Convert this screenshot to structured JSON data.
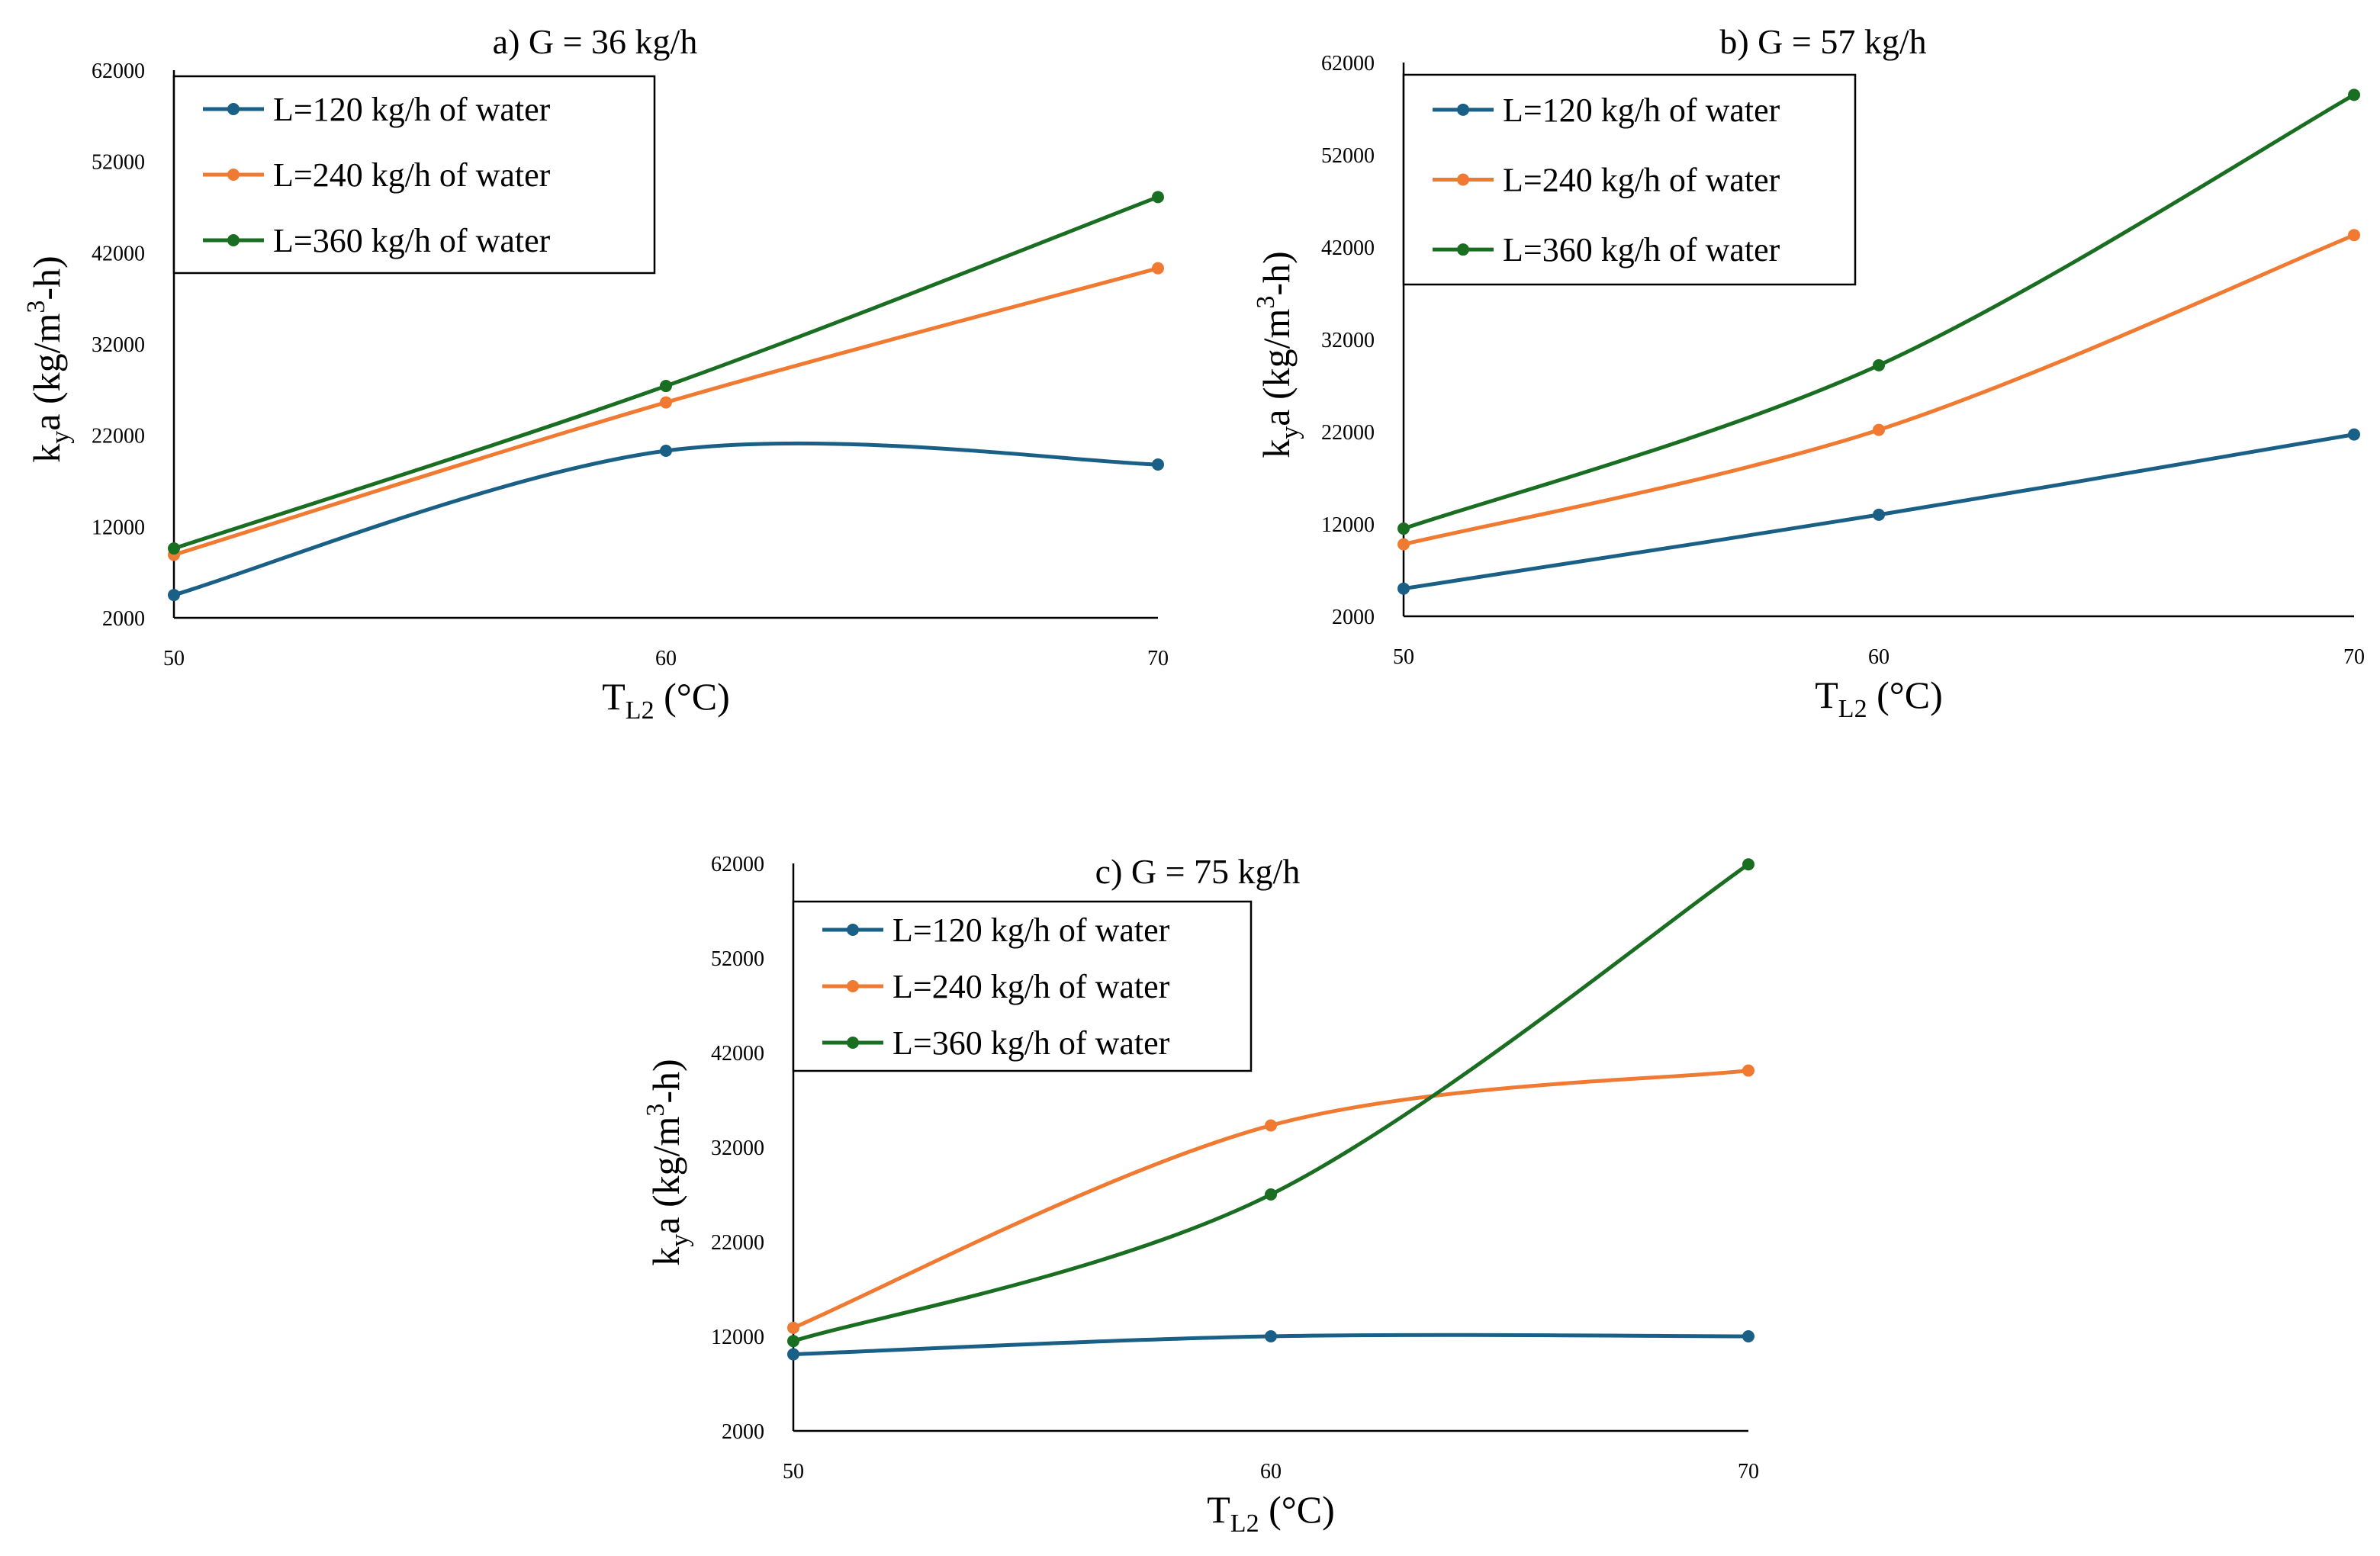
{
  "chart_data": [
    {
      "type": "line",
      "title": "a) G = 36 kg/h",
      "xlabel": "T",
      "xlabel_sub": "L2",
      "xlabel_unit": " (°C)",
      "ylabel": "k",
      "ylabel_sub": "y",
      "ylabel_mid": "a (kg/m",
      "ylabel_sup": "3",
      "ylabel_end": "-h)",
      "x": [
        50,
        60,
        70
      ],
      "xlim": [
        50,
        70
      ],
      "ylim": [
        2000,
        62000
      ],
      "yticks": [
        "2000",
        "12000",
        "22000",
        "32000",
        "42000",
        "52000",
        "62000"
      ],
      "xticks": [
        "50",
        "60",
        "70"
      ],
      "grid": false,
      "legend_position": "top-left",
      "series": [
        {
          "name": "L=120 kg/h of water",
          "color": "#1a5f86",
          "values": [
            4500,
            20300,
            18800
          ]
        },
        {
          "name": "L=240 kg/h of water",
          "color": "#f07a32",
          "values": [
            8900,
            25600,
            40300
          ]
        },
        {
          "name": "L=360 kg/h of water",
          "color": "#1a6e22",
          "values": [
            9600,
            27400,
            48100
          ]
        }
      ]
    },
    {
      "type": "line",
      "title": "b) G = 57 kg/h",
      "xlabel": "T",
      "xlabel_sub": "L2",
      "xlabel_unit": " (°C)",
      "ylabel": "k",
      "ylabel_sub": "y",
      "ylabel_mid": "a (kg/m",
      "ylabel_sup": "3",
      "ylabel_end": "-h)",
      "x": [
        50,
        60,
        70
      ],
      "xlim": [
        50,
        70
      ],
      "ylim": [
        2000,
        62000
      ],
      "yticks": [
        "2000",
        "12000",
        "22000",
        "32000",
        "42000",
        "52000",
        "62000"
      ],
      "xticks": [
        "50",
        "60",
        "70"
      ],
      "grid": false,
      "legend_position": "top-left",
      "series": [
        {
          "name": "L=120 kg/h of water",
          "color": "#1a5f86",
          "values": [
            5000,
            13000,
            21700
          ]
        },
        {
          "name": "L=240 kg/h of water",
          "color": "#f07a32",
          "values": [
            9800,
            22200,
            43300
          ]
        },
        {
          "name": "L=360 kg/h of water",
          "color": "#1a6e22",
          "values": [
            11500,
            29200,
            58500
          ]
        }
      ]
    },
    {
      "type": "line",
      "title": "c) G = 75 kg/h",
      "xlabel": "T",
      "xlabel_sub": "L2",
      "xlabel_unit": " (°C)",
      "ylabel": "k",
      "ylabel_sub": "y",
      "ylabel_mid": "a (kg/m",
      "ylabel_sup": "3",
      "ylabel_end": "-h)",
      "x": [
        50,
        60,
        70
      ],
      "xlim": [
        50,
        70
      ],
      "ylim": [
        2000,
        62000
      ],
      "yticks": [
        "2000",
        "12000",
        "22000",
        "32000",
        "42000",
        "52000",
        "62000"
      ],
      "xticks": [
        "50",
        "60",
        "70"
      ],
      "grid": false,
      "legend_position": "top-left",
      "series": [
        {
          "name": "L=120 kg/h of water",
          "color": "#1a5f86",
          "values": [
            10100,
            12000,
            12000
          ]
        },
        {
          "name": "L=240 kg/h of water",
          "color": "#f07a32",
          "values": [
            12900,
            34300,
            40100
          ]
        },
        {
          "name": "L=360 kg/h of water",
          "color": "#1a6e22",
          "values": [
            11500,
            27000,
            61900
          ]
        }
      ]
    }
  ]
}
